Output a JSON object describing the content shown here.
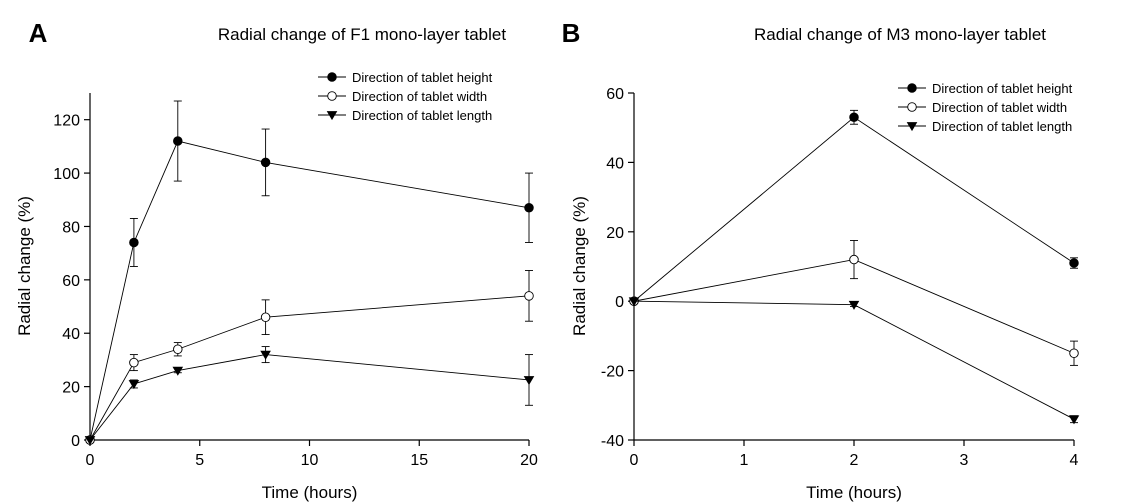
{
  "chart_data": [
    {
      "panel_label": "A",
      "type": "line",
      "title": "Radial change of F1 mono-layer tablet",
      "xlabel": "Time (hours)",
      "ylabel": "Radial change (%)",
      "xlim": [
        0,
        20
      ],
      "ylim": [
        0,
        130
      ],
      "xticks": [
        0,
        5,
        10,
        15,
        20
      ],
      "yticks": [
        0,
        20,
        40,
        60,
        80,
        100,
        120
      ],
      "grid": false,
      "legend_position": "top-right",
      "series": [
        {
          "name": "Direction of tablet height",
          "marker": "filled-circle",
          "x": [
            0,
            2,
            4,
            8,
            20
          ],
          "y": [
            0,
            74,
            112,
            104,
            87
          ],
          "error": [
            0,
            9,
            15,
            12.5,
            13
          ]
        },
        {
          "name": "Direction of tablet width",
          "marker": "open-circle",
          "x": [
            0,
            2,
            4,
            8,
            20
          ],
          "y": [
            0,
            29,
            34,
            46,
            54
          ],
          "error": [
            0,
            3,
            2.5,
            6.5,
            9.5
          ]
        },
        {
          "name": "Direction of tablet length",
          "marker": "filled-triangle-down",
          "x": [
            0,
            2,
            4,
            8,
            20
          ],
          "y": [
            0,
            21,
            26,
            32,
            22.5
          ],
          "error": [
            0,
            1.5,
            0.8,
            3,
            9.5
          ]
        }
      ]
    },
    {
      "panel_label": "B",
      "type": "line",
      "title": "Radial change of M3 mono-layer tablet",
      "xlabel": "Time (hours)",
      "ylabel": "Radial change (%)",
      "xlim": [
        0,
        4
      ],
      "ylim": [
        -40,
        60
      ],
      "xticks": [
        0,
        1,
        2,
        3,
        4
      ],
      "yticks": [
        -40,
        -20,
        0,
        20,
        40,
        60
      ],
      "grid": false,
      "legend_position": "top-right",
      "series": [
        {
          "name": "Direction of tablet height",
          "marker": "filled-circle",
          "x": [
            0,
            2,
            4
          ],
          "y": [
            0,
            53,
            11
          ],
          "error": [
            0,
            2,
            1.5
          ]
        },
        {
          "name": "Direction of tablet width",
          "marker": "open-circle",
          "x": [
            0,
            2,
            4
          ],
          "y": [
            0,
            12,
            -15
          ],
          "error": [
            0,
            5.5,
            3.5
          ]
        },
        {
          "name": "Direction of tablet length",
          "marker": "filled-triangle-down",
          "x": [
            0,
            2,
            4
          ],
          "y": [
            0,
            -1,
            -34
          ],
          "error": [
            0,
            0.5,
            1
          ]
        }
      ]
    }
  ]
}
